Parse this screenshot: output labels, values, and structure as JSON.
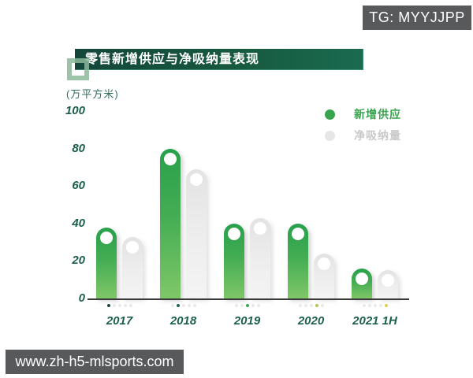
{
  "watermarks": {
    "tg_badge": "TG: MYYJJPP",
    "site_badge": "www.zh-h5-mlsports.com"
  },
  "chart": {
    "title": "零售新增供应与净吸纳量表现",
    "unit_label": "(万平方米)",
    "legend": [
      {
        "label": "新增供应",
        "dot_color": "#3aa34f",
        "text_color": "#3aa34f"
      },
      {
        "label": "净吸纳量",
        "dot_color": "#e6e6e6",
        "text_color": "#c9c9c9"
      }
    ],
    "pager_active_colors": [
      "#20483c",
      "#20674e",
      "#3fa551",
      "#afc852",
      "#decf52"
    ]
  },
  "chart_data": {
    "type": "bar",
    "title": "零售新增供应与净吸纳量表现",
    "unit": "万平方米",
    "categories": [
      "2017",
      "2018",
      "2019",
      "2020",
      "2021 1H"
    ],
    "series": [
      {
        "name": "新增供应",
        "values": [
          38,
          80,
          40,
          40,
          16
        ],
        "color": "#2fa24d"
      },
      {
        "name": "净吸纳量",
        "values": [
          33,
          69,
          43,
          24,
          15
        ],
        "color": "#e4e4e4"
      }
    ],
    "ylim": [
      0,
      100
    ],
    "yticks": [
      0,
      20,
      40,
      60,
      80,
      100
    ],
    "grid": false,
    "legend_position": "top-right",
    "bar_style": "rounded-cap-with-hole"
  },
  "colors": {
    "banner_start": "#15463a",
    "banner_end": "#1a6b50",
    "axis_text": "#1c5f4c",
    "axis_line": "#3a3a3a",
    "badge_bg": "#58595b",
    "bar_green_top": "#28a04b",
    "bar_green_bottom": "#7fc768",
    "bar_gray_top": "#e3e3e3",
    "bar_gray_bottom": "#f4f4f4"
  }
}
